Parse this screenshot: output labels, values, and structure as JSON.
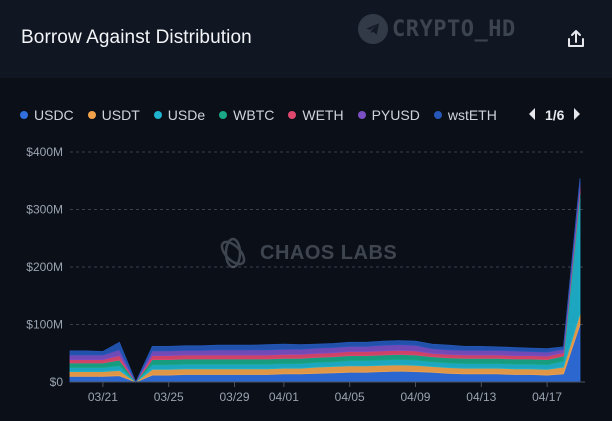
{
  "header": {
    "title": "Borrow Against Distribution",
    "watermark_text": "CRYPTO_HD"
  },
  "legend": {
    "items": [
      {
        "name": "USDC",
        "color": "#2f6fe0"
      },
      {
        "name": "USDT",
        "color": "#f2a24b"
      },
      {
        "name": "USDe",
        "color": "#1fb3cf"
      },
      {
        "name": "WBTC",
        "color": "#1aa889"
      },
      {
        "name": "WETH",
        "color": "#e0476f"
      },
      {
        "name": "PYUSD",
        "color": "#7b4fc4"
      },
      {
        "name": "wstETH",
        "color": "#2457b8"
      }
    ],
    "page": "1/6"
  },
  "watermark": {
    "text": "CHAOS LABS"
  },
  "chart_data": {
    "type": "area",
    "stacked": true,
    "title": "Borrow Against Distribution",
    "xlabel": "",
    "ylabel": "",
    "ylim": [
      0,
      400
    ],
    "yticks": [
      0,
      100,
      200,
      300,
      400
    ],
    "ytick_labels": [
      "$0",
      "$100M",
      "$200M",
      "$300M",
      "$400M"
    ],
    "xtick_labels": [
      "03/21",
      "03/25",
      "03/29",
      "04/01",
      "04/05",
      "04/09",
      "04/13",
      "04/17"
    ],
    "xtick_index": [
      2,
      6,
      10,
      13,
      17,
      21,
      25,
      29
    ],
    "grid": true,
    "x": [
      "03/19",
      "03/20",
      "03/21",
      "03/22",
      "03/23",
      "03/24",
      "03/25",
      "03/26",
      "03/27",
      "03/28",
      "03/29",
      "03/30",
      "03/31",
      "04/01",
      "04/02",
      "04/03",
      "04/04",
      "04/05",
      "04/06",
      "04/07",
      "04/08",
      "04/09",
      "04/10",
      "04/11",
      "04/12",
      "04/13",
      "04/14",
      "04/15",
      "04/16",
      "04/17",
      "04/18",
      "04/19"
    ],
    "series": [
      {
        "name": "USDC",
        "color": "#2f6fe0",
        "values": [
          10,
          10,
          10,
          11,
          0,
          12,
          12,
          13,
          13,
          13,
          13,
          13,
          13,
          14,
          14,
          15,
          16,
          17,
          17,
          18,
          19,
          18,
          17,
          15,
          14,
          14,
          14,
          13,
          13,
          12,
          14,
          100
        ]
      },
      {
        "name": "USDT",
        "color": "#f2a24b",
        "values": [
          8,
          8,
          8,
          9,
          0,
          10,
          10,
          10,
          10,
          10,
          10,
          10,
          10,
          10,
          10,
          11,
          11,
          11,
          11,
          11,
          11,
          11,
          10,
          10,
          10,
          10,
          10,
          10,
          10,
          10,
          12,
          18
        ]
      },
      {
        "name": "USDe",
        "color": "#1fb3cf",
        "values": [
          7,
          7,
          7,
          8,
          0,
          8,
          8,
          8,
          8,
          8,
          8,
          8,
          8,
          8,
          8,
          8,
          8,
          9,
          9,
          9,
          9,
          9,
          8,
          8,
          8,
          8,
          8,
          8,
          8,
          8,
          10,
          200
        ]
      },
      {
        "name": "WBTC",
        "color": "#1aa889",
        "values": [
          8,
          8,
          8,
          10,
          0,
          9,
          9,
          9,
          9,
          9,
          9,
          9,
          9,
          9,
          9,
          9,
          9,
          9,
          9,
          9,
          9,
          9,
          9,
          9,
          9,
          9,
          9,
          9,
          9,
          9,
          9,
          12
        ]
      },
      {
        "name": "WETH",
        "color": "#e0476f",
        "values": [
          6,
          6,
          6,
          8,
          0,
          7,
          7,
          7,
          7,
          7,
          7,
          7,
          7,
          7,
          7,
          7,
          7,
          7,
          7,
          7,
          7,
          7,
          6,
          6,
          6,
          6,
          6,
          6,
          6,
          6,
          6,
          8
        ]
      },
      {
        "name": "PYUSD",
        "color": "#7b4fc4",
        "values": [
          8,
          8,
          8,
          10,
          0,
          8,
          8,
          8,
          8,
          9,
          9,
          9,
          9,
          9,
          9,
          9,
          9,
          9,
          9,
          10,
          10,
          10,
          8,
          8,
          8,
          8,
          8,
          8,
          7,
          7,
          6,
          10
        ]
      },
      {
        "name": "wstETH",
        "color": "#2457b8",
        "values": [
          7,
          7,
          6,
          13,
          0,
          8,
          8,
          8,
          8,
          8,
          8,
          8,
          9,
          9,
          8,
          7,
          7,
          7,
          7,
          7,
          7,
          7,
          8,
          8,
          7,
          7,
          6,
          6,
          6,
          6,
          4,
          6
        ]
      }
    ]
  }
}
